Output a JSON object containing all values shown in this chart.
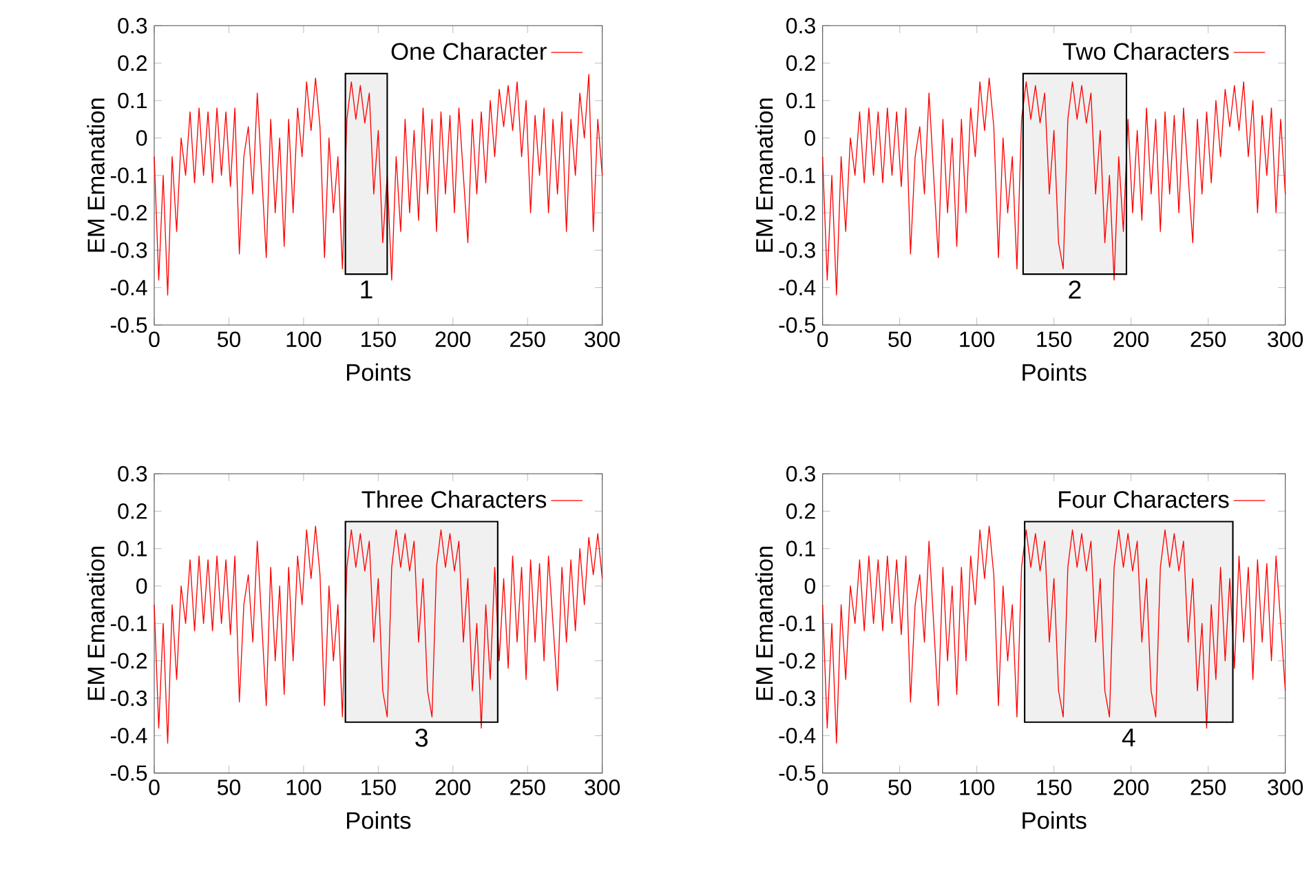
{
  "chart_data": [
    {
      "type": "line",
      "xlabel": "Points",
      "ylabel": "EM Emanation",
      "legend": "top right",
      "marker": "none",
      "x": [
        0,
        3,
        6,
        9,
        12,
        15,
        18,
        21,
        24,
        27,
        30,
        33,
        36,
        39,
        42,
        45,
        48,
        51,
        54,
        57,
        60,
        63,
        66,
        69,
        72,
        75,
        78,
        81,
        84,
        87,
        90,
        93,
        96,
        99,
        102,
        105,
        108,
        111,
        114,
        117,
        120,
        123,
        126,
        129,
        132,
        135,
        138,
        141,
        144,
        147,
        150,
        153,
        156,
        159,
        162,
        165,
        168,
        171,
        174,
        177,
        180,
        183,
        186,
        189,
        192,
        195,
        198,
        201,
        204,
        207,
        210,
        213,
        216,
        219,
        222,
        225,
        228,
        231,
        234,
        237,
        240,
        243,
        246,
        249,
        252,
        255,
        258,
        261,
        264,
        267,
        270,
        273,
        276,
        279,
        282,
        285,
        288,
        291,
        294,
        297,
        300
      ],
      "series": [
        {
          "name": "One Character",
          "color": "#ff0000",
          "values": [
            -0.05,
            -0.38,
            -0.1,
            -0.42,
            -0.05,
            -0.25,
            0.0,
            -0.1,
            0.07,
            -0.12,
            0.08,
            -0.1,
            0.07,
            -0.12,
            0.08,
            -0.1,
            0.07,
            -0.13,
            0.08,
            -0.31,
            -0.05,
            0.03,
            -0.15,
            0.12,
            -0.1,
            -0.32,
            0.05,
            -0.2,
            0.0,
            -0.29,
            0.05,
            -0.2,
            0.08,
            -0.05,
            0.15,
            0.02,
            0.16,
            0.03,
            -0.32,
            0.0,
            -0.2,
            -0.05,
            -0.35,
            0.05,
            0.15,
            0.05,
            0.14,
            0.04,
            0.12,
            -0.15,
            0.02,
            -0.28,
            -0.1,
            -0.38,
            -0.05,
            -0.25,
            0.05,
            -0.2,
            0.02,
            -0.22,
            0.08,
            -0.15,
            0.05,
            -0.25,
            0.07,
            -0.15,
            0.06,
            -0.2,
            0.08,
            -0.1,
            -0.28,
            0.05,
            -0.15,
            0.07,
            -0.12,
            0.1,
            -0.05,
            0.13,
            0.03,
            0.14,
            0.02,
            0.15,
            -0.05,
            0.1,
            -0.2,
            0.06,
            -0.1,
            0.08,
            -0.2,
            0.05,
            -0.15,
            0.07,
            -0.25,
            0.05,
            -0.1,
            0.12,
            0.0,
            0.17,
            -0.25,
            0.05,
            -0.1
          ]
        }
      ],
      "xlim": [
        0,
        300
      ],
      "xticks": [
        0,
        50,
        100,
        150,
        200,
        250,
        300
      ],
      "ylim": [
        -0.5,
        0.3
      ],
      "yticks": [
        -0.5,
        -0.4,
        -0.3,
        -0.2,
        -0.1,
        0,
        0.1,
        0.2,
        0.3
      ],
      "bands": [
        {
          "axis": "x",
          "from": 128,
          "to": 156,
          "label": "1"
        }
      ]
    },
    {
      "type": "line",
      "xlabel": "Points",
      "ylabel": "EM Emanation",
      "legend": "top right",
      "marker": "none",
      "x": [
        0,
        3,
        6,
        9,
        12,
        15,
        18,
        21,
        24,
        27,
        30,
        33,
        36,
        39,
        42,
        45,
        48,
        51,
        54,
        57,
        60,
        63,
        66,
        69,
        72,
        75,
        78,
        81,
        84,
        87,
        90,
        93,
        96,
        99,
        102,
        105,
        108,
        111,
        114,
        117,
        120,
        123,
        126,
        129,
        132,
        135,
        138,
        141,
        144,
        147,
        150,
        153,
        156,
        159,
        162,
        165,
        168,
        171,
        174,
        177,
        180,
        183,
        186,
        189,
        192,
        195,
        198,
        201,
        204,
        207,
        210,
        213,
        216,
        219,
        222,
        225,
        228,
        231,
        234,
        237,
        240,
        243,
        246,
        249,
        252,
        255,
        258,
        261,
        264,
        267,
        270,
        273,
        276,
        279,
        282,
        285,
        288,
        291,
        294,
        297,
        300
      ],
      "series": [
        {
          "name": "Two Characters",
          "color": "#ff0000",
          "values": [
            -0.05,
            -0.38,
            -0.1,
            -0.42,
            -0.05,
            -0.25,
            0.0,
            -0.1,
            0.07,
            -0.12,
            0.08,
            -0.1,
            0.07,
            -0.12,
            0.08,
            -0.1,
            0.07,
            -0.13,
            0.08,
            -0.31,
            -0.05,
            0.03,
            -0.15,
            0.12,
            -0.1,
            -0.32,
            0.05,
            -0.2,
            0.0,
            -0.29,
            0.05,
            -0.2,
            0.08,
            -0.05,
            0.15,
            0.02,
            0.16,
            0.03,
            -0.32,
            0.0,
            -0.2,
            -0.05,
            -0.35,
            0.05,
            0.15,
            0.05,
            0.14,
            0.04,
            0.12,
            -0.15,
            0.02,
            -0.28,
            -0.35,
            0.05,
            0.15,
            0.05,
            0.14,
            0.04,
            0.12,
            -0.15,
            0.02,
            -0.28,
            -0.1,
            -0.38,
            -0.05,
            -0.25,
            0.05,
            -0.2,
            0.02,
            -0.22,
            0.08,
            -0.15,
            0.05,
            -0.25,
            0.07,
            -0.15,
            0.06,
            -0.2,
            0.08,
            -0.1,
            -0.28,
            0.05,
            -0.15,
            0.07,
            -0.12,
            0.1,
            -0.05,
            0.13,
            0.03,
            0.14,
            0.02,
            0.15,
            -0.05,
            0.1,
            -0.2,
            0.06,
            -0.1,
            0.08,
            -0.2,
            0.05,
            -0.15
          ]
        }
      ],
      "xlim": [
        0,
        300
      ],
      "xticks": [
        0,
        50,
        100,
        150,
        200,
        250,
        300
      ],
      "ylim": [
        -0.5,
        0.3
      ],
      "yticks": [
        -0.5,
        -0.4,
        -0.3,
        -0.2,
        -0.1,
        0,
        0.1,
        0.2,
        0.3
      ],
      "bands": [
        {
          "axis": "x",
          "from": 130,
          "to": 197,
          "label": "2"
        }
      ]
    },
    {
      "type": "line",
      "xlabel": "Points",
      "ylabel": "EM Emanation",
      "legend": "top right",
      "marker": "none",
      "x": [
        0,
        3,
        6,
        9,
        12,
        15,
        18,
        21,
        24,
        27,
        30,
        33,
        36,
        39,
        42,
        45,
        48,
        51,
        54,
        57,
        60,
        63,
        66,
        69,
        72,
        75,
        78,
        81,
        84,
        87,
        90,
        93,
        96,
        99,
        102,
        105,
        108,
        111,
        114,
        117,
        120,
        123,
        126,
        129,
        132,
        135,
        138,
        141,
        144,
        147,
        150,
        153,
        156,
        159,
        162,
        165,
        168,
        171,
        174,
        177,
        180,
        183,
        186,
        189,
        192,
        195,
        198,
        201,
        204,
        207,
        210,
        213,
        216,
        219,
        222,
        225,
        228,
        231,
        234,
        237,
        240,
        243,
        246,
        249,
        252,
        255,
        258,
        261,
        264,
        267,
        270,
        273,
        276,
        279,
        282,
        285,
        288,
        291,
        294,
        297,
        300
      ],
      "series": [
        {
          "name": "Three Characters",
          "color": "#ff0000",
          "values": [
            -0.05,
            -0.38,
            -0.1,
            -0.42,
            -0.05,
            -0.25,
            0.0,
            -0.1,
            0.07,
            -0.12,
            0.08,
            -0.1,
            0.07,
            -0.12,
            0.08,
            -0.1,
            0.07,
            -0.13,
            0.08,
            -0.31,
            -0.05,
            0.03,
            -0.15,
            0.12,
            -0.1,
            -0.32,
            0.05,
            -0.2,
            0.0,
            -0.29,
            0.05,
            -0.2,
            0.08,
            -0.05,
            0.15,
            0.02,
            0.16,
            0.03,
            -0.32,
            0.0,
            -0.2,
            -0.05,
            -0.35,
            0.05,
            0.15,
            0.05,
            0.14,
            0.04,
            0.12,
            -0.15,
            0.02,
            -0.28,
            -0.35,
            0.05,
            0.15,
            0.05,
            0.14,
            0.04,
            0.12,
            -0.15,
            0.02,
            -0.28,
            -0.35,
            0.05,
            0.15,
            0.05,
            0.14,
            0.04,
            0.12,
            -0.15,
            0.02,
            -0.28,
            -0.1,
            -0.38,
            -0.05,
            -0.25,
            0.05,
            -0.2,
            0.02,
            -0.22,
            0.08,
            -0.15,
            0.05,
            -0.25,
            0.07,
            -0.15,
            0.06,
            -0.2,
            0.08,
            -0.1,
            -0.28,
            0.05,
            -0.15,
            0.07,
            -0.12,
            0.1,
            -0.05,
            0.13,
            0.03,
            0.14,
            0.02
          ]
        }
      ],
      "xlim": [
        0,
        300
      ],
      "xticks": [
        0,
        50,
        100,
        150,
        200,
        250,
        300
      ],
      "ylim": [
        -0.5,
        0.3
      ],
      "yticks": [
        -0.5,
        -0.4,
        -0.3,
        -0.2,
        -0.1,
        0,
        0.1,
        0.2,
        0.3
      ],
      "bands": [
        {
          "axis": "x",
          "from": 128,
          "to": 230,
          "label": "3"
        }
      ]
    },
    {
      "type": "line",
      "xlabel": "Points",
      "ylabel": "EM Emanation",
      "legend": "top right",
      "marker": "none",
      "x": [
        0,
        3,
        6,
        9,
        12,
        15,
        18,
        21,
        24,
        27,
        30,
        33,
        36,
        39,
        42,
        45,
        48,
        51,
        54,
        57,
        60,
        63,
        66,
        69,
        72,
        75,
        78,
        81,
        84,
        87,
        90,
        93,
        96,
        99,
        102,
        105,
        108,
        111,
        114,
        117,
        120,
        123,
        126,
        129,
        132,
        135,
        138,
        141,
        144,
        147,
        150,
        153,
        156,
        159,
        162,
        165,
        168,
        171,
        174,
        177,
        180,
        183,
        186,
        189,
        192,
        195,
        198,
        201,
        204,
        207,
        210,
        213,
        216,
        219,
        222,
        225,
        228,
        231,
        234,
        237,
        240,
        243,
        246,
        249,
        252,
        255,
        258,
        261,
        264,
        267,
        270,
        273,
        276,
        279,
        282,
        285,
        288,
        291,
        294,
        297,
        300
      ],
      "series": [
        {
          "name": "Four Characters",
          "color": "#ff0000",
          "values": [
            -0.05,
            -0.38,
            -0.1,
            -0.42,
            -0.05,
            -0.25,
            0.0,
            -0.1,
            0.07,
            -0.12,
            0.08,
            -0.1,
            0.07,
            -0.12,
            0.08,
            -0.1,
            0.07,
            -0.13,
            0.08,
            -0.31,
            -0.05,
            0.03,
            -0.15,
            0.12,
            -0.1,
            -0.32,
            0.05,
            -0.2,
            0.0,
            -0.29,
            0.05,
            -0.2,
            0.08,
            -0.05,
            0.15,
            0.02,
            0.16,
            0.03,
            -0.32,
            0.0,
            -0.2,
            -0.05,
            -0.35,
            0.05,
            0.15,
            0.05,
            0.14,
            0.04,
            0.12,
            -0.15,
            0.02,
            -0.28,
            -0.35,
            0.05,
            0.15,
            0.05,
            0.14,
            0.04,
            0.12,
            -0.15,
            0.02,
            -0.28,
            -0.35,
            0.05,
            0.15,
            0.05,
            0.14,
            0.04,
            0.12,
            -0.15,
            0.02,
            -0.28,
            -0.35,
            0.05,
            0.15,
            0.05,
            0.14,
            0.04,
            0.12,
            -0.15,
            0.02,
            -0.28,
            -0.1,
            -0.38,
            -0.05,
            -0.25,
            0.05,
            -0.2,
            0.02,
            -0.22,
            0.08,
            -0.15,
            0.05,
            -0.25,
            0.07,
            -0.15,
            0.06,
            -0.2,
            0.08,
            -0.1,
            -0.28
          ]
        }
      ],
      "xlim": [
        0,
        300
      ],
      "xticks": [
        0,
        50,
        100,
        150,
        200,
        250,
        300
      ],
      "ylim": [
        -0.5,
        0.3
      ],
      "yticks": [
        -0.5,
        -0.4,
        -0.3,
        -0.2,
        -0.1,
        0,
        0.1,
        0.2,
        0.3
      ],
      "bands": [
        {
          "axis": "x",
          "from": 131,
          "to": 266,
          "label": "4"
        }
      ]
    }
  ]
}
